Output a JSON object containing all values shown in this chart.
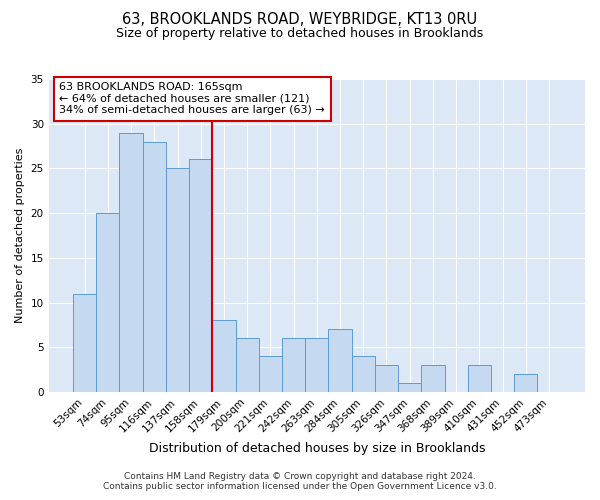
{
  "title": "63, BROOKLANDS ROAD, WEYBRIDGE, KT13 0RU",
  "subtitle": "Size of property relative to detached houses in Brooklands",
  "xlabel": "Distribution of detached houses by size in Brooklands",
  "ylabel": "Number of detached properties",
  "bar_labels": [
    "53sqm",
    "74sqm",
    "95sqm",
    "116sqm",
    "137sqm",
    "158sqm",
    "179sqm",
    "200sqm",
    "221sqm",
    "242sqm",
    "263sqm",
    "284sqm",
    "305sqm",
    "326sqm",
    "347sqm",
    "368sqm",
    "389sqm",
    "410sqm",
    "431sqm",
    "452sqm",
    "473sqm"
  ],
  "bar_heights": [
    11,
    20,
    29,
    28,
    25,
    26,
    8,
    6,
    4,
    6,
    6,
    7,
    4,
    3,
    1,
    3,
    0,
    3,
    0,
    2,
    0
  ],
  "bar_color": "#c5d9f1",
  "bar_edge_color": "#5b9bd5",
  "vline_x": 5.5,
  "vline_color": "#cc0000",
  "annotation_title": "63 BROOKLANDS ROAD: 165sqm",
  "annotation_line1": "← 64% of detached houses are smaller (121)",
  "annotation_line2": "34% of semi-detached houses are larger (63) →",
  "annotation_box_color": "#ffffff",
  "annotation_box_edge": "#cc0000",
  "ylim": [
    0,
    35
  ],
  "yticks": [
    0,
    5,
    10,
    15,
    20,
    25,
    30,
    35
  ],
  "footer1": "Contains HM Land Registry data © Crown copyright and database right 2024.",
  "footer2": "Contains public sector information licensed under the Open Government Licence v3.0.",
  "bg_color": "#dce8f5",
  "fig_bg_color": "#ffffff",
  "title_fontsize": 10.5,
  "subtitle_fontsize": 9,
  "xlabel_fontsize": 9,
  "ylabel_fontsize": 8,
  "tick_fontsize": 7.5,
  "annotation_fontsize": 8,
  "footer_fontsize": 6.5
}
